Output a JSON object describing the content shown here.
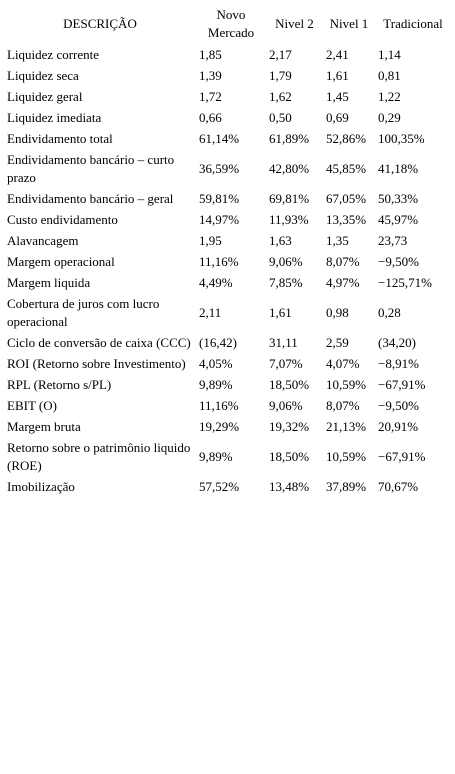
{
  "table": {
    "headers": [
      "DESCRIÇÃO",
      "Novo Mercado",
      "Nivel 2",
      "Nivel 1",
      "Tradicional"
    ],
    "rows": [
      [
        "Liquidez corrente",
        "1,85",
        "2,17",
        "2,41",
        "1,14"
      ],
      [
        "Liquidez seca",
        "1,39",
        "1,79",
        "1,61",
        "0,81"
      ],
      [
        "Liquidez geral",
        "1,72",
        "1,62",
        "1,45",
        "1,22"
      ],
      [
        "Liquidez imediata",
        "0,66",
        "0,50",
        "0,69",
        "0,29"
      ],
      [
        "Endividamento total",
        "61,14%",
        "61,89%",
        "52,86%",
        "100,35%"
      ],
      [
        "Endividamento bancário – curto prazo",
        "36,59%",
        "42,80%",
        "45,85%",
        "41,18%"
      ],
      [
        "Endividamento bancário – geral",
        "59,81%",
        "69,81%",
        "67,05%",
        "50,33%"
      ],
      [
        "Custo endividamento",
        "14,97%",
        "11,93%",
        "13,35%",
        "45,97%"
      ],
      [
        "Alavancagem",
        "1,95",
        "1,63",
        "1,35",
        "23,73"
      ],
      [
        "Margem operacional",
        "11,16%",
        "9,06%",
        "8,07%",
        "−9,50%"
      ],
      [
        "Margem liquida",
        "4,49%",
        "7,85%",
        "4,97%",
        "−125,71%"
      ],
      [
        "Cobertura de juros com lucro operacional",
        "2,11",
        "1,61",
        "0,98",
        "0,28"
      ],
      [
        "Ciclo de conversão de caixa (CCC)",
        "(16,42)",
        "31,11",
        "2,59",
        "(34,20)"
      ],
      [
        "ROI (Retorno sobre Investimento)",
        "4,05%",
        "7,07%",
        "4,07%",
        "−8,91%"
      ],
      [
        "RPL (Retorno s/PL)",
        "9,89%",
        "18,50%",
        "10,59%",
        "−67,91%"
      ],
      [
        "EBIT (O)",
        "11,16%",
        "9,06%",
        "8,07%",
        "−9,50%"
      ],
      [
        "Margem bruta",
        "19,29%",
        "19,32%",
        "21,13%",
        "20,91%"
      ],
      [
        "Retorno sobre o patrimônio liquido (ROE)",
        "9,89%",
        "18,50%",
        "10,59%",
        "−67,91%"
      ],
      [
        "Imobilização",
        "57,52%",
        "13,48%",
        "37,89%",
        "70,67%"
      ]
    ]
  }
}
